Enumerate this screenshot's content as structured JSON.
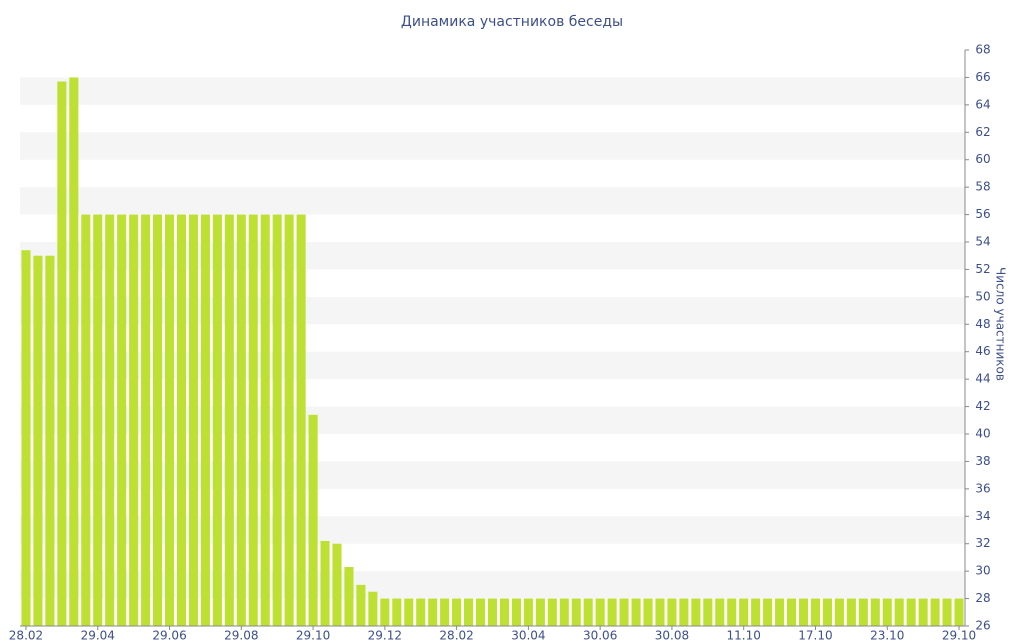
{
  "chart_data": {
    "type": "bar",
    "title": "Динамика участников беседы",
    "y_label": "Число участников",
    "categories": [
      "28.02",
      null,
      null,
      null,
      null,
      null,
      "29.04",
      null,
      null,
      null,
      null,
      null,
      "29.06",
      null,
      null,
      null,
      null,
      null,
      "29.08",
      null,
      null,
      null,
      null,
      null,
      "29.10",
      null,
      null,
      null,
      null,
      null,
      "29.12",
      null,
      null,
      null,
      null,
      null,
      "28.02",
      null,
      null,
      null,
      null,
      null,
      "30.04",
      null,
      null,
      null,
      null,
      null,
      "30.06",
      null,
      null,
      null,
      null,
      null,
      "30.08",
      null,
      null,
      null,
      null,
      null,
      "11.10",
      null,
      null,
      null,
      null,
      null,
      "17.10",
      null,
      null,
      null,
      null,
      null,
      "23.10",
      null,
      null,
      null,
      null,
      null,
      "29.10"
    ],
    "values": [
      53.4,
      53,
      53,
      65.7,
      66,
      56,
      56,
      56,
      56,
      56,
      56,
      56,
      56,
      56,
      56,
      56,
      56,
      56,
      56,
      56,
      56,
      56,
      56,
      56,
      41.4,
      32.2,
      32,
      30.3,
      29,
      28.5,
      28,
      28,
      28,
      28,
      28,
      28,
      28,
      28,
      28,
      28,
      28,
      28,
      28,
      28,
      28,
      28,
      28,
      28,
      28,
      28,
      28,
      28,
      28,
      28,
      28,
      28,
      28,
      28,
      28,
      28,
      28,
      28,
      28,
      28,
      28,
      28,
      28,
      28,
      28,
      28,
      28,
      28,
      28,
      28,
      28,
      28,
      28,
      28,
      28
    ],
    "color": "#bde033",
    "ylim": [
      26,
      68
    ],
    "yticks": [
      26,
      28,
      30,
      32,
      34,
      36,
      38,
      40,
      42,
      44,
      46,
      48,
      50,
      52,
      54,
      56,
      58,
      60,
      62,
      64,
      66,
      68
    ],
    "grid": "bands",
    "y_axis_side": "right"
  }
}
